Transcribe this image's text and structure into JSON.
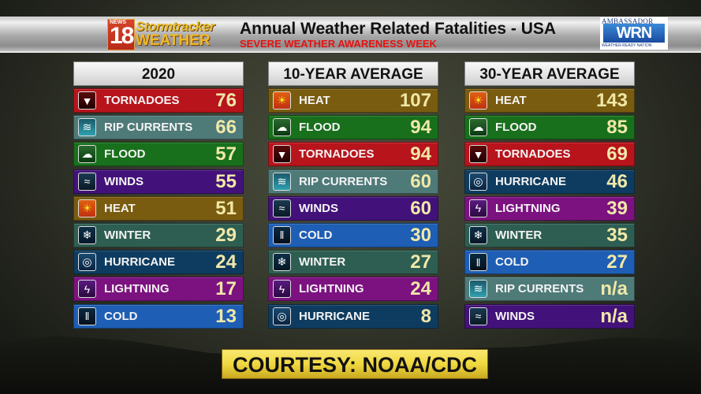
{
  "header": {
    "logo": {
      "news": "NEWS",
      "channel": "18",
      "brand_line1": "Stormtracker",
      "brand_line2": "WEATHER"
    },
    "title": "Annual Weather Related Fatalities - USA",
    "subtitle": "SEVERE WEATHER AWARENESS WEEK",
    "badge": {
      "top": "AMBASSADOR",
      "mark": "WRN",
      "bottom": "WEATHER-READY NATION"
    }
  },
  "colors": {
    "tornadoes": "#b8141c",
    "rip_currents": "#4e7a78",
    "flood": "#18701c",
    "winds": "#42127a",
    "heat": "#7a5c10",
    "winter": "#2e5e52",
    "hurricane": "#0e3c60",
    "lightning": "#7c1280",
    "cold": "#1e5eb4",
    "value_text": "#f0e8a8"
  },
  "panels": [
    {
      "title": "2020",
      "rows": [
        {
          "key": "tornadoes",
          "icon": "tornado-icon",
          "label": "TORNADOES",
          "value": "76"
        },
        {
          "key": "rip_currents",
          "icon": "rip-current-icon",
          "label": "RIP CURRENTS",
          "value": "66"
        },
        {
          "key": "flood",
          "icon": "flood-icon",
          "label": "FLOOD",
          "value": "57"
        },
        {
          "key": "winds",
          "icon": "wind-icon",
          "label": "WINDS",
          "value": "55"
        },
        {
          "key": "heat",
          "icon": "sun-icon",
          "label": "HEAT",
          "value": "51"
        },
        {
          "key": "winter",
          "icon": "snowflake-icon",
          "label": "WINTER",
          "value": "29"
        },
        {
          "key": "hurricane",
          "icon": "hurricane-icon",
          "label": "HURRICANE",
          "value": "24"
        },
        {
          "key": "lightning",
          "icon": "lightning-icon",
          "label": "LIGHTNING",
          "value": "17"
        },
        {
          "key": "cold",
          "icon": "icicle-icon",
          "label": "COLD",
          "value": "13"
        }
      ]
    },
    {
      "title": "10-YEAR AVERAGE",
      "rows": [
        {
          "key": "heat",
          "icon": "sun-icon",
          "label": "HEAT",
          "value": "107"
        },
        {
          "key": "flood",
          "icon": "flood-icon",
          "label": "FLOOD",
          "value": "94"
        },
        {
          "key": "tornadoes",
          "icon": "tornado-icon",
          "label": "TORNADOES",
          "value": "94"
        },
        {
          "key": "rip_currents",
          "icon": "rip-current-icon",
          "label": "RIP CURRENTS",
          "value": "60"
        },
        {
          "key": "winds",
          "icon": "wind-icon",
          "label": "WINDS",
          "value": "60"
        },
        {
          "key": "cold",
          "icon": "icicle-icon",
          "label": "COLD",
          "value": "30"
        },
        {
          "key": "winter",
          "icon": "snowflake-icon",
          "label": "WINTER",
          "value": "27"
        },
        {
          "key": "lightning",
          "icon": "lightning-icon",
          "label": "LIGHTNING",
          "value": "24"
        },
        {
          "key": "hurricane",
          "icon": "hurricane-icon",
          "label": "HURRICANE",
          "value": "8"
        }
      ]
    },
    {
      "title": "30-YEAR AVERAGE",
      "rows": [
        {
          "key": "heat",
          "icon": "sun-icon",
          "label": "HEAT",
          "value": "143"
        },
        {
          "key": "flood",
          "icon": "flood-icon",
          "label": "FLOOD",
          "value": "85"
        },
        {
          "key": "tornadoes",
          "icon": "tornado-icon",
          "label": "TORNADOES",
          "value": "69"
        },
        {
          "key": "hurricane",
          "icon": "hurricane-icon",
          "label": "HURRICANE",
          "value": "46"
        },
        {
          "key": "lightning",
          "icon": "lightning-icon",
          "label": "LIGHTNING",
          "value": "39"
        },
        {
          "key": "winter",
          "icon": "snowflake-icon",
          "label": "WINTER",
          "value": "35"
        },
        {
          "key": "cold",
          "icon": "icicle-icon",
          "label": "COLD",
          "value": "27"
        },
        {
          "key": "rip_currents",
          "icon": "rip-current-icon",
          "label": "RIP CURRENTS",
          "value": "n/a"
        },
        {
          "key": "winds",
          "icon": "wind-icon",
          "label": "WINDS",
          "value": "n/a"
        }
      ]
    }
  ],
  "footer": {
    "courtesy": "COURTESY: NOAA/CDC"
  }
}
